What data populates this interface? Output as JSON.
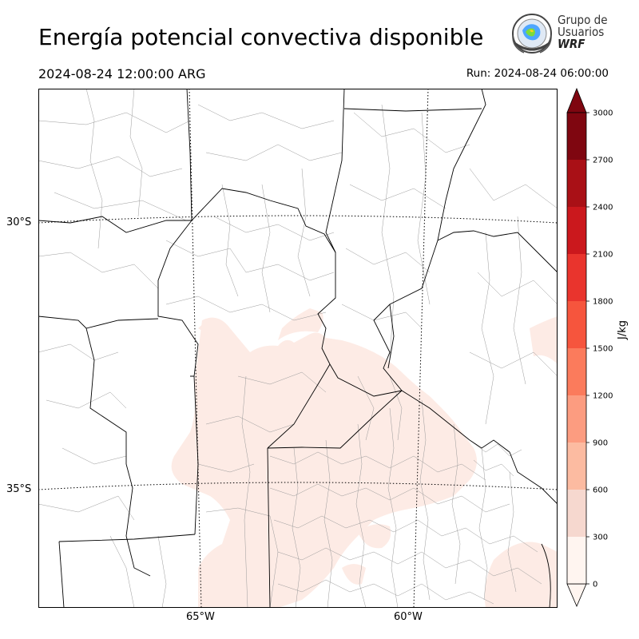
{
  "header": {
    "title": "Energía potencial convectiva disponible",
    "valid_time": "2024-08-24 12:00:00 ARG",
    "run_time": "Run: 2024-08-24 06:00:00"
  },
  "logo": {
    "line1": "Grupo de",
    "line2": "Usuarios",
    "line3": "WRF"
  },
  "map": {
    "latitude_labels": [
      "30°S",
      "35°S"
    ],
    "longitude_labels": [
      "65°W",
      "60°W"
    ],
    "cape_fill_color": "#fdebe5",
    "border_color": "#000000"
  },
  "colorbar": {
    "unit": "J/kg",
    "levels": [
      0,
      300,
      600,
      900,
      1200,
      1500,
      1800,
      2100,
      2400,
      2700,
      3000
    ],
    "tick_labels": [
      "0",
      "300",
      "600",
      "900",
      "1200",
      "1500",
      "1800",
      "2100",
      "2400",
      "2700",
      "3000"
    ],
    "colors": [
      "#fff5f0",
      "#f6d8cf",
      "#fcbba1",
      "#fc9c80",
      "#fb7b5c",
      "#f6553d",
      "#e9342d",
      "#cb181d",
      "#a91016",
      "#7f0610"
    ],
    "extend": "both"
  }
}
